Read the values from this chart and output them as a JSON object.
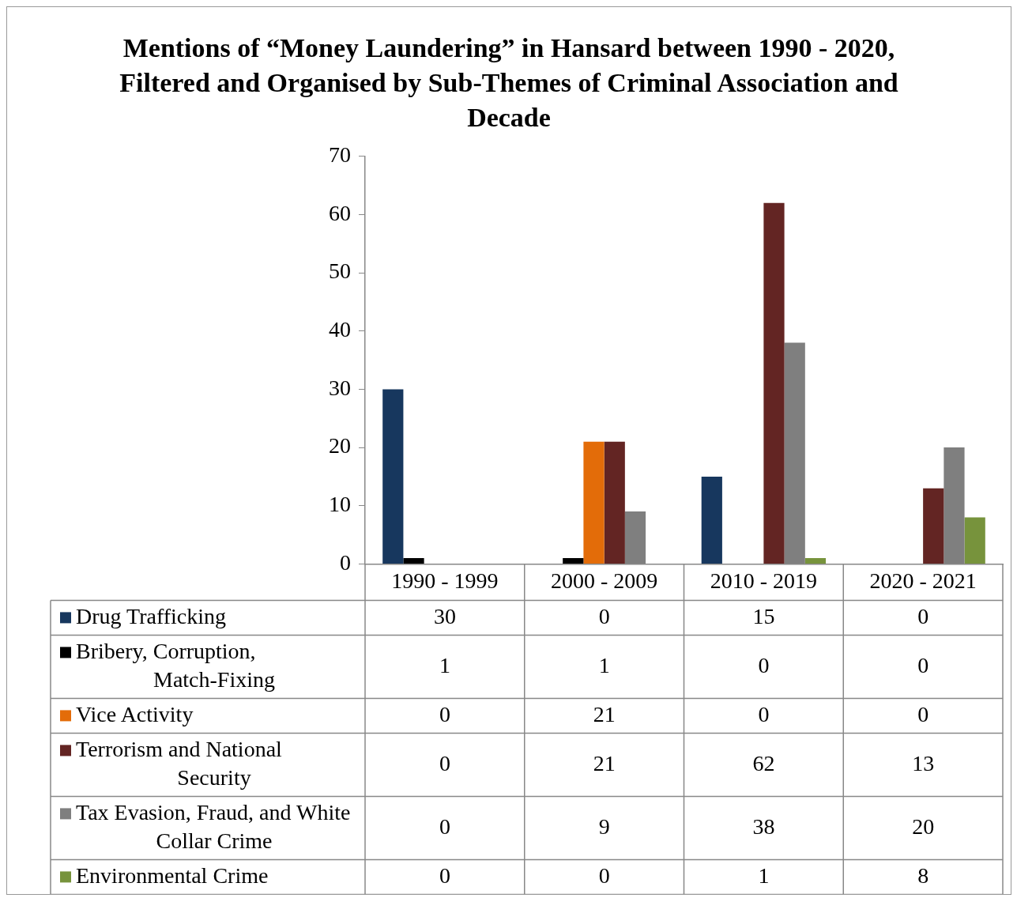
{
  "chart_data": {
    "type": "bar",
    "title": "Mentions of “Money Laundering” in Hansard between 1990 - 2020, Filtered and Organised by Sub-Themes of Criminal Association and Decade",
    "categories": [
      "1990 - 1999",
      "2000 - 2009",
      "2010 - 2019",
      "2020 - 2021"
    ],
    "series": [
      {
        "name": "Drug Trafficking",
        "color": "#17375e",
        "values": [
          30,
          0,
          15,
          0
        ]
      },
      {
        "name": "Bribery, Corruption, Match-Fixing",
        "color": "#000000",
        "values": [
          1,
          1,
          0,
          0
        ]
      },
      {
        "name": "Vice Activity",
        "color": "#e36c09",
        "values": [
          0,
          21,
          0,
          0
        ]
      },
      {
        "name": "Terrorism and National Security",
        "color": "#632523",
        "values": [
          0,
          21,
          62,
          13
        ]
      },
      {
        "name": "Tax Evasion, Fraud, and White Collar Crime",
        "color": "#7f7f7f",
        "values": [
          0,
          9,
          38,
          20
        ]
      },
      {
        "name": "Environmental Crime",
        "color": "#77933c",
        "values": [
          0,
          0,
          1,
          8
        ]
      }
    ],
    "ylim": [
      0,
      70
    ],
    "yticks": [
      0,
      10,
      20,
      30,
      40,
      50,
      60,
      70
    ],
    "grid": false,
    "legend": "bottom left",
    "data_labels": true
  }
}
